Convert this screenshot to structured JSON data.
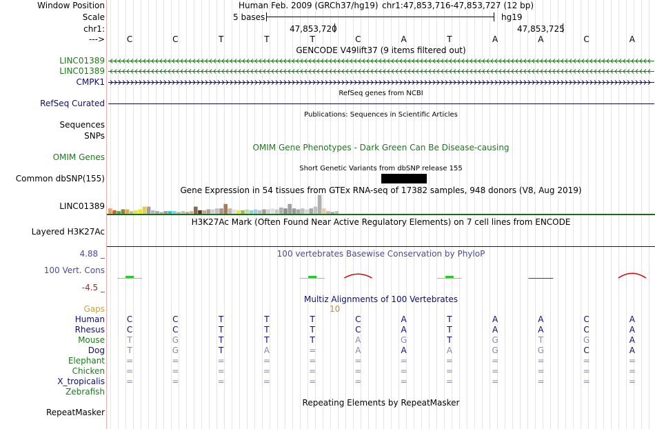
{
  "header": {
    "window_position_label": "Window Position",
    "scale_label": "Scale",
    "chrom_label": "chr1:",
    "arrow_label": "--->",
    "assembly": "Human Feb. 2009 (GRCh37/hg19)",
    "position": "chr1:47,853,716-47,853,727 (12 bp)",
    "scale_text": "5 bases",
    "scale_db": "hg19",
    "coord1": "47,853,720",
    "coord2": "47,853,725"
  },
  "reference_bases": [
    "C",
    "C",
    "T",
    "T",
    "T",
    "C",
    "A",
    "T",
    "A",
    "A",
    "C",
    "A"
  ],
  "tracks": {
    "gencode_title": "GENCODE V49lift37 (9 items filtered out)",
    "gencode_items": [
      {
        "name": "LINC01389",
        "color": "#1a7a1a",
        "direction": "minus"
      },
      {
        "name": "LINC01389",
        "color": "#1a7a1a",
        "direction": "minus"
      },
      {
        "name": "CMPK1",
        "color": "#0c0c78",
        "direction": "plus"
      }
    ],
    "refseq_title": "RefSeq genes from NCBI",
    "refseq_label": "RefSeq Curated",
    "publications_title": "Publications: Sequences in Scientific Articles",
    "sequences_label": "Sequences",
    "snps_label": "SNPs",
    "omim_title": "OMIM Gene Phenotypes - Dark Green Can Be Disease-causing",
    "omim_label": "OMIM Genes",
    "dbsnp_title": "Short Genetic Variants from dbSNP release 155",
    "dbsnp_label": "Common dbSNP(155)",
    "gtex_title": "Gene Expression in 54 tissues from GTEx RNA-seq of 17382 samples, 948 donors (V8, Aug 2019)",
    "gtex_label": "LINC01389",
    "h3k27ac_title": "H3K27Ac Mark (Often Found Near Active Regulatory Elements) on 7 cell lines from ENCODE",
    "h3k27ac_label": "Layered H3K27Ac",
    "phylop_title": "100 vertebrates Basewise Conservation by PhyloP",
    "phylop_label": "100 Vert. Cons",
    "phylop_max": "4.88 _",
    "phylop_min": "-4.5 _",
    "multiz_title": "Multiz Alignments of 100 Vertebrates",
    "gaps_label": "Gaps",
    "gaps_value": "10",
    "repeat_title": "Repeating Elements by RepeatMasker",
    "repeat_label": "RepeatMasker"
  },
  "alignment": [
    {
      "species": "Human",
      "color": "#0c0c78",
      "bases": [
        "C",
        "C",
        "T",
        "T",
        "T",
        "C",
        "A",
        "T",
        "A",
        "A",
        "C",
        "A"
      ],
      "match": [
        1,
        1,
        1,
        1,
        1,
        1,
        1,
        1,
        1,
        1,
        1,
        1
      ]
    },
    {
      "species": "Rhesus",
      "color": "#0c0c78",
      "bases": [
        "C",
        "C",
        "T",
        "T",
        "T",
        "C",
        "A",
        "T",
        "A",
        "A",
        "C",
        "A"
      ],
      "match": [
        1,
        1,
        1,
        1,
        1,
        1,
        1,
        1,
        1,
        1,
        1,
        1
      ]
    },
    {
      "species": "Mouse",
      "color": "#1a7a1a",
      "bases": [
        "T",
        "G",
        "T",
        "T",
        "T",
        "A",
        "G",
        "T",
        "G",
        "T",
        "G",
        "A"
      ],
      "match": [
        0,
        0,
        1,
        1,
        1,
        0,
        0,
        1,
        0,
        0,
        0,
        1
      ]
    },
    {
      "species": "Dog",
      "color": "#0c0c78",
      "bases": [
        "T",
        "G",
        "T",
        "A",
        "=",
        "A",
        "A",
        "A",
        "G",
        "G",
        "C",
        "A"
      ],
      "match": [
        0,
        0,
        1,
        0,
        0,
        0,
        1,
        0,
        0,
        0,
        1,
        1
      ]
    },
    {
      "species": "Elephant",
      "color": "#1a7a1a",
      "bases": [
        "=",
        "=",
        "=",
        "=",
        "=",
        "=",
        "=",
        "=",
        "=",
        "=",
        "=",
        "="
      ],
      "match": [
        0,
        0,
        0,
        0,
        0,
        0,
        0,
        0,
        0,
        0,
        0,
        0
      ]
    },
    {
      "species": "Chicken",
      "color": "#1a7a1a",
      "bases": [
        "=",
        "=",
        "=",
        "=",
        "=",
        "=",
        "=",
        "=",
        "=",
        "=",
        "=",
        "="
      ],
      "match": [
        0,
        0,
        0,
        0,
        0,
        0,
        0,
        0,
        0,
        0,
        0,
        0
      ]
    },
    {
      "species": "X_tropicalis",
      "color": "#0c0c78",
      "bases": [
        "=",
        "=",
        "=",
        "=",
        "=",
        "=",
        "=",
        "=",
        "=",
        "=",
        "=",
        "="
      ],
      "match": [
        0,
        0,
        0,
        0,
        0,
        0,
        0,
        0,
        0,
        0,
        0,
        0
      ]
    },
    {
      "species": "Zebrafish",
      "color": "#1a7a1a",
      "bases": [
        "",
        "",
        "",
        "",
        "",
        "",
        "",
        "",
        "",
        "",
        "",
        ""
      ],
      "match": [
        0,
        0,
        0,
        0,
        0,
        0,
        0,
        0,
        0,
        0,
        0,
        0
      ]
    }
  ],
  "gtex_colors": [
    "#f2a05a",
    "#e05a3c",
    "#3ab54a",
    "#9a7a4a",
    "#d4b24a",
    "#c0c0a0",
    "#e8e82a",
    "#e8e82a",
    "#e8d03a",
    "#a0a0a0",
    "#b8b8b8",
    "#a8a8a8",
    "#b0b0b0",
    "#9a9a9a",
    "#22c4c4",
    "#88c8e8",
    "#b0b0b0",
    "#c0c0c0",
    "#c8a080",
    "#e0b090",
    "#8a6a4a",
    "#5a3a2a",
    "#c8a898",
    "#a0a0a0",
    "#d0d0d0",
    "#c0c0c0",
    "#b09090",
    "#a87a5a",
    "#c8b8a8",
    "#e0e0e0",
    "#e8e82a",
    "#9ab86a",
    "#c8d8a8",
    "#80d8d8",
    "#a8c8e8",
    "#c0c0c0",
    "#a0a0a0",
    "#d0d0d0",
    "#e0e0e0",
    "#c8c8c8",
    "#b0b0b0",
    "#909090",
    "#a0a0a0",
    "#989898",
    "#a8a8a8",
    "#c0c0c0",
    "#d8d8d8",
    "#a8a8a8",
    "#c0c0c0",
    "#b0b0b0",
    "#f0c8a0",
    "#d0b0c0",
    "#a0a0c0",
    "#c0c0c0"
  ],
  "gtex_values": [
    6,
    4,
    3,
    5,
    5,
    3,
    4,
    5,
    8,
    8,
    4,
    3,
    2,
    3,
    3,
    3,
    2,
    3,
    2,
    3,
    8,
    4,
    4,
    5,
    5,
    6,
    6,
    11,
    6,
    5,
    4,
    4,
    5,
    4,
    5,
    4,
    5,
    5,
    6,
    5,
    7,
    6,
    11,
    6,
    5,
    6,
    5,
    6,
    8,
    21,
    6,
    3,
    2,
    3
  ],
  "phylop_marks": [
    {
      "pos": 0.0,
      "val": 0.4,
      "color": "#2c2"
    },
    {
      "pos": 4.0,
      "val": 0.6,
      "color": "#2c2"
    },
    {
      "pos": 5.0,
      "val": 1.2,
      "color": "#d00"
    },
    {
      "pos": 7.0,
      "val": 0.2,
      "color": "#2c2"
    },
    {
      "pos": 9.0,
      "val": -0.2,
      "color": "#d00"
    },
    {
      "pos": 11.0,
      "val": 1.4,
      "color": "#d00"
    }
  ]
}
